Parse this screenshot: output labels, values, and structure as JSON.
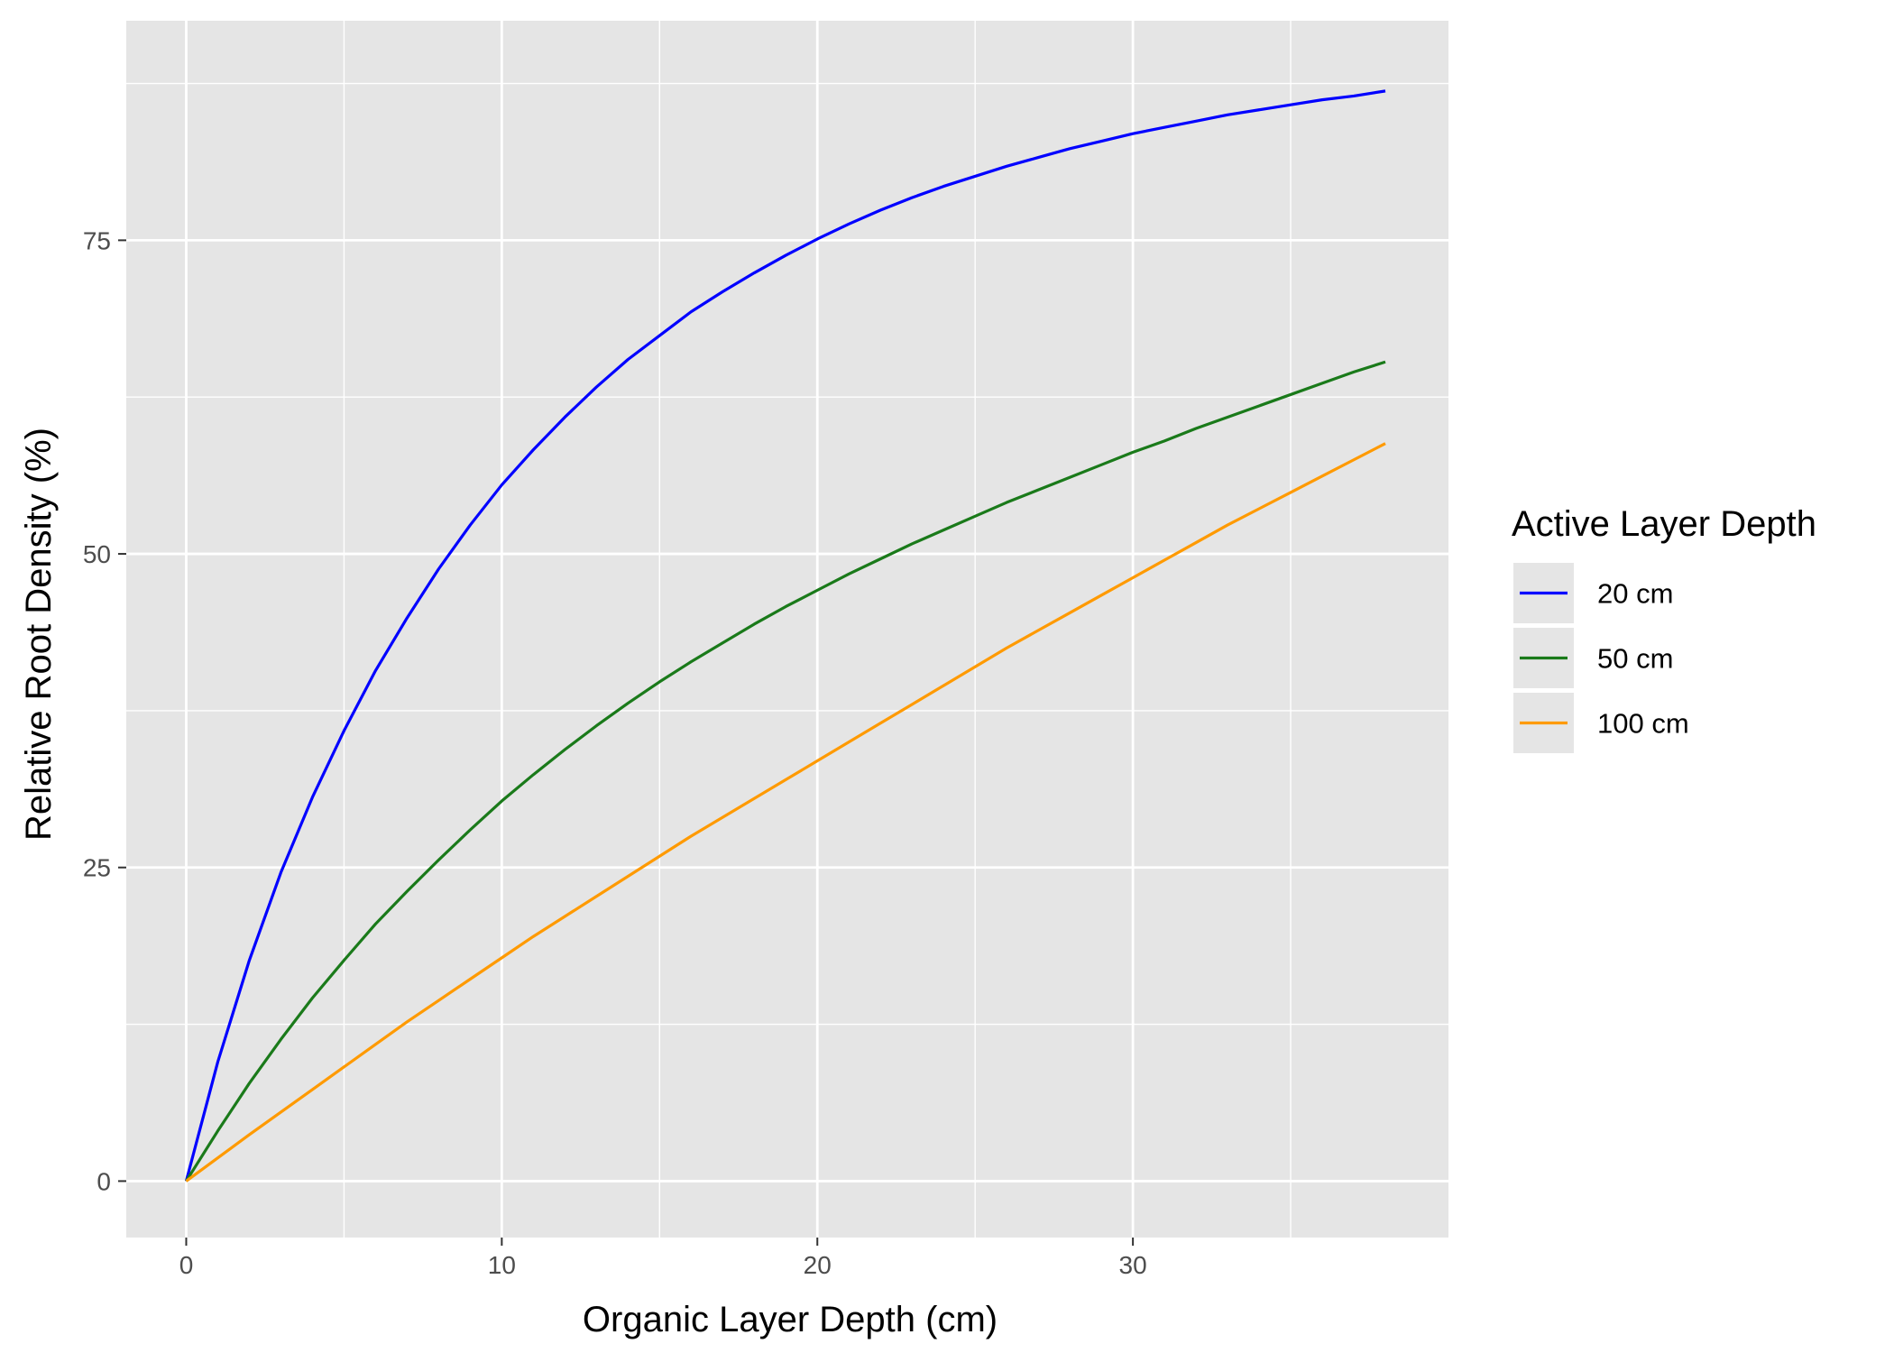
{
  "chart_data": {
    "type": "line",
    "title": "",
    "xlabel": "Organic Layer Depth (cm)",
    "ylabel": "Relative Root Density (%)",
    "xlim": [
      -1.9,
      40
    ],
    "ylim": [
      -4.5,
      92.5
    ],
    "x_ticks": [
      0,
      10,
      20,
      30
    ],
    "y_ticks": [
      0,
      25,
      50,
      75
    ],
    "x_minor": [
      5,
      15,
      25,
      35
    ],
    "y_minor": [
      12.5,
      37.5,
      62.5,
      87.5
    ],
    "grid": true,
    "legend": {
      "title": "Active Layer Depth",
      "position": "right"
    },
    "x": [
      0,
      1,
      2,
      3,
      4,
      5,
      6,
      7,
      8,
      9,
      10,
      11,
      12,
      13,
      14,
      15,
      16,
      17,
      18,
      19,
      20,
      21,
      22,
      23,
      24,
      25,
      26,
      27,
      28,
      29,
      30,
      31,
      32,
      33,
      34,
      35,
      36,
      37,
      38
    ],
    "series": [
      {
        "name": "20 cm",
        "color": "#0000ff",
        "values": [
          0,
          9.5,
          17.6,
          24.6,
          30.6,
          35.9,
          40.7,
          44.9,
          48.8,
          52.3,
          55.5,
          58.3,
          60.9,
          63.3,
          65.5,
          67.4,
          69.3,
          70.9,
          72.4,
          73.8,
          75.1,
          76.3,
          77.4,
          78.4,
          79.3,
          80.1,
          80.9,
          81.6,
          82.3,
          82.9,
          83.5,
          84.0,
          84.5,
          85.0,
          85.4,
          85.8,
          86.2,
          86.5,
          86.9
        ]
      },
      {
        "name": "50 cm",
        "color": "#1a7a1a",
        "values": [
          0,
          4.0,
          7.8,
          11.3,
          14.6,
          17.6,
          20.5,
          23.1,
          25.6,
          28.0,
          30.3,
          32.4,
          34.4,
          36.3,
          38.1,
          39.8,
          41.4,
          42.9,
          44.4,
          45.8,
          47.1,
          48.4,
          49.6,
          50.8,
          51.9,
          53.0,
          54.1,
          55.1,
          56.1,
          57.1,
          58.1,
          59.0,
          60.0,
          60.9,
          61.8,
          62.7,
          63.6,
          64.5,
          65.3
        ]
      },
      {
        "name": "100 cm",
        "color": "#ff9a00",
        "values": [
          0,
          1.85,
          3.7,
          5.5,
          7.3,
          9.1,
          10.9,
          12.7,
          14.4,
          16.1,
          17.8,
          19.5,
          21.1,
          22.7,
          24.3,
          25.9,
          27.5,
          29.0,
          30.5,
          32.0,
          33.5,
          35.0,
          36.5,
          38.0,
          39.5,
          41.0,
          42.5,
          43.9,
          45.3,
          46.7,
          48.1,
          49.5,
          50.9,
          52.3,
          53.6,
          54.9,
          56.2,
          57.5,
          58.8
        ]
      }
    ]
  },
  "colors": {
    "panel": "#e5e5e5",
    "grid": "#ffffff",
    "tick_mark": "#333333"
  }
}
